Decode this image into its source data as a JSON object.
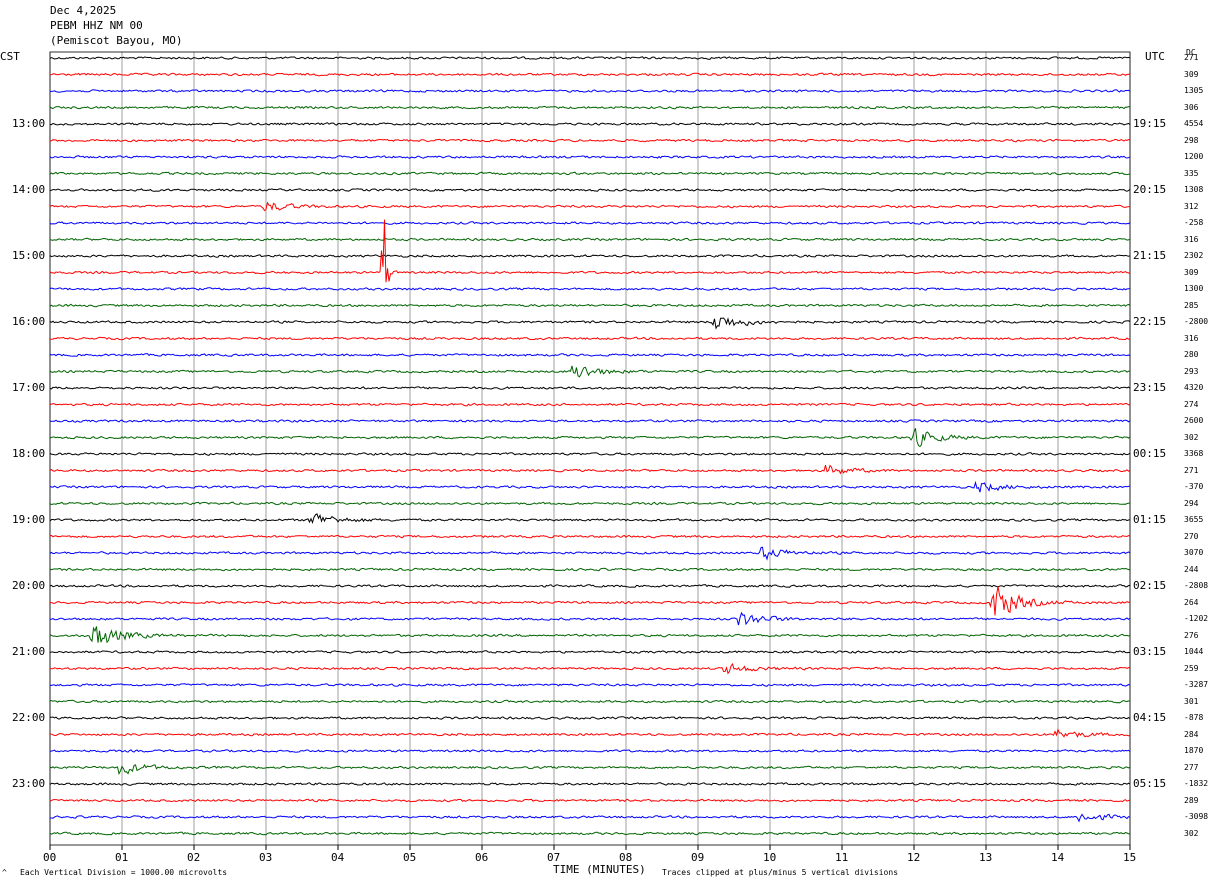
{
  "header": {
    "date": "Dec 4,2025",
    "station": "PEBM HHZ NM 00",
    "location": "(Pemiscot Bayou, MO)"
  },
  "left_tz": "CST",
  "right_tz": "UTC",
  "dc_heading": "DC",
  "footer": {
    "division_note": "Each Vertical Division = 1000.00 microvolts",
    "xlabel": "TIME (MINUTES)",
    "clip_note": "Traces clipped at plus/minus 5 vertical divisions",
    "corner_mark": "^"
  },
  "colors": {
    "c0": "#000000",
    "c1": "#ff0000",
    "c2": "#0000ff",
    "c3": "#006400",
    "grid": "#888888"
  },
  "chart_data": {
    "type": "line",
    "title": "PEBM HHZ NM 00",
    "xlabel": "TIME (MINUTES)",
    "ylabel": "",
    "xlim": [
      0,
      15
    ],
    "x_ticks": [
      "00",
      "01",
      "02",
      "03",
      "04",
      "05",
      "06",
      "07",
      "08",
      "09",
      "10",
      "11",
      "12",
      "13",
      "14",
      "15"
    ],
    "left_labels": [
      "13:00",
      "14:00",
      "15:00",
      "16:00",
      "17:00",
      "18:00",
      "19:00",
      "20:00",
      "21:00",
      "22:00",
      "23:00"
    ],
    "right_labels": [
      "19:15",
      "20:15",
      "21:15",
      "22:15",
      "23:15",
      "00:15",
      "01:15",
      "02:15",
      "03:15",
      "04:15",
      "05:15"
    ],
    "trace_count": 48,
    "trace_colors": [
      "black",
      "red",
      "blue",
      "green"
    ],
    "dc_offsets": [
      "271",
      "309",
      "1305",
      "306",
      "4554",
      "298",
      "1200",
      "335",
      "1308",
      "312",
      "-258",
      "316",
      "2302",
      "309",
      "1300",
      "285",
      "-2800",
      "316",
      "280",
      "293",
      "4320",
      "274",
      "2600",
      "302",
      "3368",
      "271",
      "-370",
      "294",
      "3655",
      "270",
      "3070",
      "244",
      "-2808",
      "264",
      "-1202",
      "276",
      "1044",
      "259",
      "-3287",
      "301",
      "-878",
      "284",
      "1870",
      "277",
      "-1832",
      "289",
      "-3098",
      "302"
    ],
    "events": [
      {
        "trace": 13,
        "minute": 4.65,
        "amplitude": 5,
        "note": "large spike"
      },
      {
        "trace": 33,
        "minute": 13.1,
        "amplitude": 1.6
      },
      {
        "trace": 35,
        "minute": 0.6,
        "amplitude": 1.2
      },
      {
        "trace": 23,
        "minute": 12.0,
        "amplitude": 0.7
      },
      {
        "trace": 16,
        "minute": 9.25,
        "amplitude": 0.7
      },
      {
        "trace": 19,
        "minute": 7.3,
        "amplitude": 0.6
      },
      {
        "trace": 34,
        "minute": 9.6,
        "amplitude": 0.6
      },
      {
        "trace": 28,
        "minute": 3.65,
        "amplitude": 0.6
      },
      {
        "trace": 43,
        "minute": 1.0,
        "amplitude": 0.5
      },
      {
        "trace": 30,
        "minute": 9.9,
        "amplitude": 0.5
      },
      {
        "trace": 37,
        "minute": 9.4,
        "amplitude": 0.4
      },
      {
        "trace": 41,
        "minute": 14.0,
        "amplitude": 0.4
      },
      {
        "trace": 46,
        "minute": 14.3,
        "amplitude": 0.4
      },
      {
        "trace": 9,
        "minute": 3.0,
        "amplitude": 0.4
      },
      {
        "trace": 25,
        "minute": 10.8,
        "amplitude": 0.4
      },
      {
        "trace": 26,
        "minute": 12.9,
        "amplitude": 0.4
      }
    ]
  }
}
